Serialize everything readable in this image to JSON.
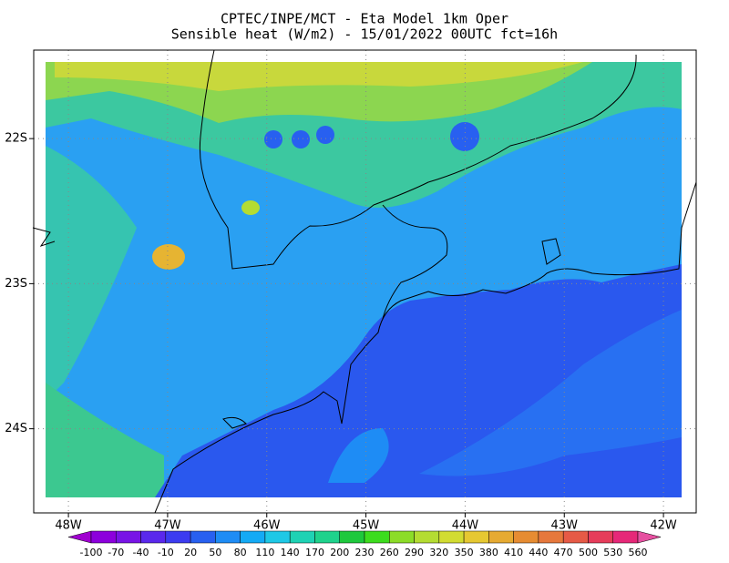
{
  "title": [
    "CPTEC/INPE/MCT -  Eta Model 1km Oper",
    "Sensible heat (W/m2) - 15/01/2022 00UTC fct=16h"
  ],
  "map": {
    "xlim": [
      -48.35,
      -41.67
    ],
    "ylim": [
      -24.58,
      -21.39
    ],
    "xticks": [
      {
        "value": -48,
        "label": "48W"
      },
      {
        "value": -47,
        "label": "47W"
      },
      {
        "value": -46,
        "label": "46W"
      },
      {
        "value": -45,
        "label": "45W"
      },
      {
        "value": -44,
        "label": "44W"
      },
      {
        "value": -43,
        "label": "43W"
      },
      {
        "value": -42,
        "label": "42W"
      }
    ],
    "yticks": [
      {
        "value": -22,
        "label": "22S"
      },
      {
        "value": -23,
        "label": "23S"
      },
      {
        "value": -24,
        "label": "24S"
      }
    ],
    "grid": true
  },
  "colorbar": {
    "levels": [
      -100,
      -70,
      -40,
      -10,
      20,
      50,
      80,
      110,
      140,
      170,
      200,
      230,
      260,
      290,
      320,
      350,
      380,
      410,
      440,
      470,
      500,
      530,
      560
    ],
    "colors": [
      "#a000d0",
      "#8c00dc",
      "#7814e6",
      "#5a28ec",
      "#3c3cf0",
      "#2860f0",
      "#1e8cf5",
      "#14aaf5",
      "#1ec8e6",
      "#1ed2b4",
      "#1ed28c",
      "#1ec83c",
      "#3cdc1e",
      "#8cdc28",
      "#b4dc32",
      "#d2dc32",
      "#e6c832",
      "#e6aa32",
      "#e68c32",
      "#e6783c",
      "#e65a46",
      "#e63c5a",
      "#e62878",
      "#e650a0"
    ]
  }
}
